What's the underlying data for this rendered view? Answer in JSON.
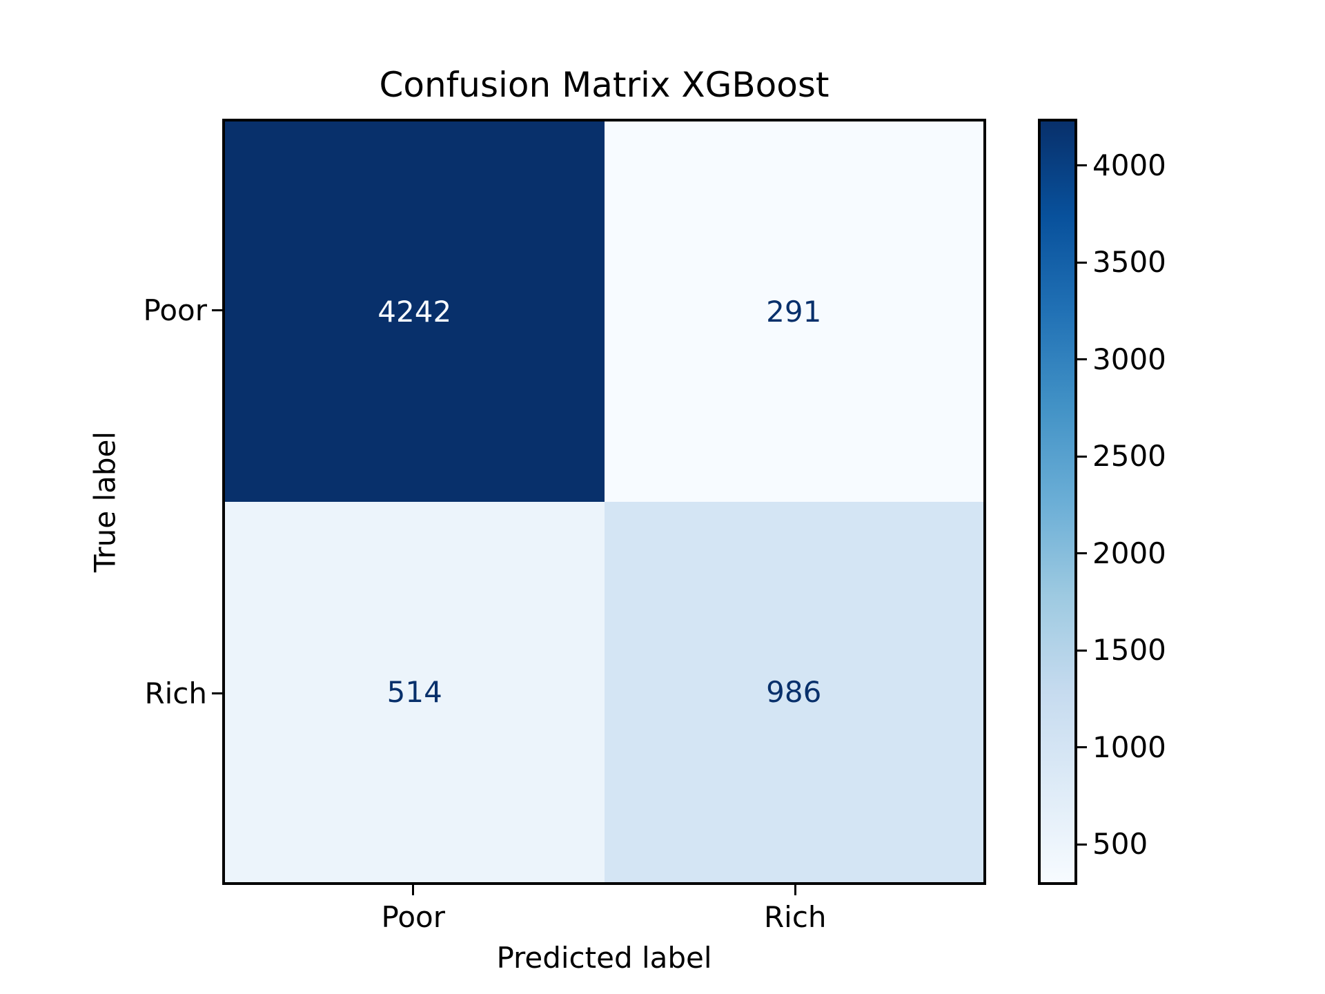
{
  "chart_data": {
    "type": "heatmap",
    "title": "Confusion Matrix XGBoost",
    "xlabel": "Predicted label",
    "ylabel": "True label",
    "x_categories": [
      "Poor",
      "Rich"
    ],
    "y_categories": [
      "Poor",
      "Rich"
    ],
    "matrix": [
      [
        4242,
        291
      ],
      [
        514,
        986
      ]
    ],
    "colormap": "Blues",
    "vmin": 291,
    "vmax": 4242,
    "colorbar_ticks": [
      500,
      1000,
      1500,
      2000,
      2500,
      3000,
      3500,
      4000
    ],
    "colorbar_position": "right",
    "legend": "none",
    "grid": "off",
    "cell_colors": [
      [
        "#08306b",
        "#f7fbff"
      ],
      [
        "#ecf4fb",
        "#d4e5f4"
      ]
    ],
    "cell_text_colors": [
      [
        "#f7fbff",
        "#08306b"
      ],
      [
        "#08306b",
        "#08306b"
      ]
    ],
    "colorbar_gradient": [
      "#f7fbff",
      "#deebf7",
      "#c6dbef",
      "#9ecae1",
      "#6baed6",
      "#4292c6",
      "#2171b5",
      "#08519c",
      "#08306b"
    ],
    "axis_color": "#000000",
    "background_color": "#ffffff"
  }
}
